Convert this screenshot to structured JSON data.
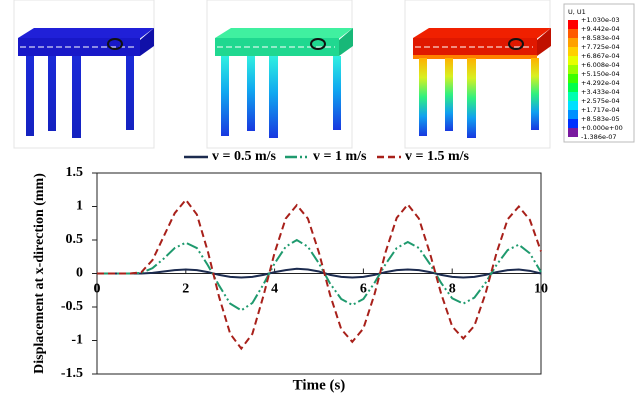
{
  "chart_data": {
    "type": "line",
    "xlabel": "Time (s)",
    "ylabel": "Displacement at x-direction (mm)",
    "x": [
      0,
      0.25,
      0.5,
      0.75,
      1,
      1.25,
      1.5,
      1.75,
      2,
      2.25,
      2.5,
      2.75,
      3,
      3.25,
      3.5,
      3.75,
      4,
      4.25,
      4.5,
      4.75,
      5,
      5.25,
      5.5,
      5.75,
      6,
      6.25,
      6.5,
      6.75,
      7,
      7.25,
      7.5,
      7.75,
      8,
      8.25,
      8.5,
      8.75,
      9,
      9.25,
      9.5,
      9.75,
      10
    ],
    "series": [
      {
        "name": "v = 0.5 m/s",
        "color": "#1c2b4f",
        "style": "solid",
        "values": [
          0,
          0,
          0,
          0,
          0,
          0.01,
          0.03,
          0.05,
          0.06,
          0.05,
          0.02,
          -0.02,
          -0.05,
          -0.06,
          -0.05,
          -0.02,
          0.02,
          0.05,
          0.07,
          0.06,
          0.03,
          -0.02,
          -0.05,
          -0.06,
          -0.05,
          -0.02,
          0.02,
          0.05,
          0.06,
          0.05,
          0.02,
          -0.02,
          -0.05,
          -0.06,
          -0.05,
          -0.02,
          0.02,
          0.05,
          0.06,
          0.04,
          0
        ]
      },
      {
        "name": "v = 1 m/s",
        "color": "#1f9a6e",
        "style": "dashdot",
        "values": [
          0,
          0,
          0,
          0,
          0.01,
          0.08,
          0.22,
          0.38,
          0.46,
          0.38,
          0.12,
          -0.18,
          -0.45,
          -0.55,
          -0.44,
          -0.16,
          0.15,
          0.4,
          0.5,
          0.4,
          0.15,
          -0.15,
          -0.38,
          -0.47,
          -0.38,
          -0.14,
          0.14,
          0.38,
          0.47,
          0.38,
          0.14,
          -0.14,
          -0.37,
          -0.45,
          -0.36,
          -0.14,
          0.13,
          0.35,
          0.43,
          0.3,
          0.02
        ]
      },
      {
        "name": "v = 1.5 m/s",
        "color": "#a8201a",
        "style": "dashed",
        "values": [
          0,
          0,
          0,
          0,
          0.02,
          0.2,
          0.55,
          0.9,
          1.1,
          0.88,
          0.32,
          -0.35,
          -0.9,
          -1.12,
          -0.9,
          -0.33,
          0.31,
          0.82,
          1.02,
          0.82,
          0.31,
          -0.32,
          -0.83,
          -1.02,
          -0.82,
          -0.31,
          0.32,
          0.83,
          1.03,
          0.82,
          0.3,
          -0.3,
          -0.79,
          -0.97,
          -0.78,
          -0.3,
          0.31,
          0.81,
          1,
          0.8,
          0.33
        ]
      }
    ],
    "xlim": [
      0,
      10
    ],
    "xticks": [
      0,
      2,
      4,
      6,
      8,
      10
    ],
    "ylim": [
      -1.5,
      1.5
    ],
    "yticks": [
      -1.5,
      -1,
      -0.5,
      0,
      0.5,
      1,
      1.5
    ]
  },
  "contour_legend": {
    "title": "U, U1",
    "labels": [
      "+1.030e-03",
      "+9.442e-04",
      "+8.583e-04",
      "+7.725e-04",
      "+6.867e-04",
      "+6.008e-04",
      "+5.150e-04",
      "+4.292e-04",
      "+3.433e-04",
      "+2.575e-04",
      "+1.717e-04",
      "+8.583e-05",
      "+0.000e+00",
      "-1.386e-07"
    ],
    "colors": [
      "#ff0000",
      "#ff5a00",
      "#ffa000",
      "#ffd000",
      "#e6ff00",
      "#9cff00",
      "#3cff00",
      "#00ff4a",
      "#00ffb0",
      "#00e0ff",
      "#0090ff",
      "#0030ff",
      "#7a1aa0"
    ]
  }
}
